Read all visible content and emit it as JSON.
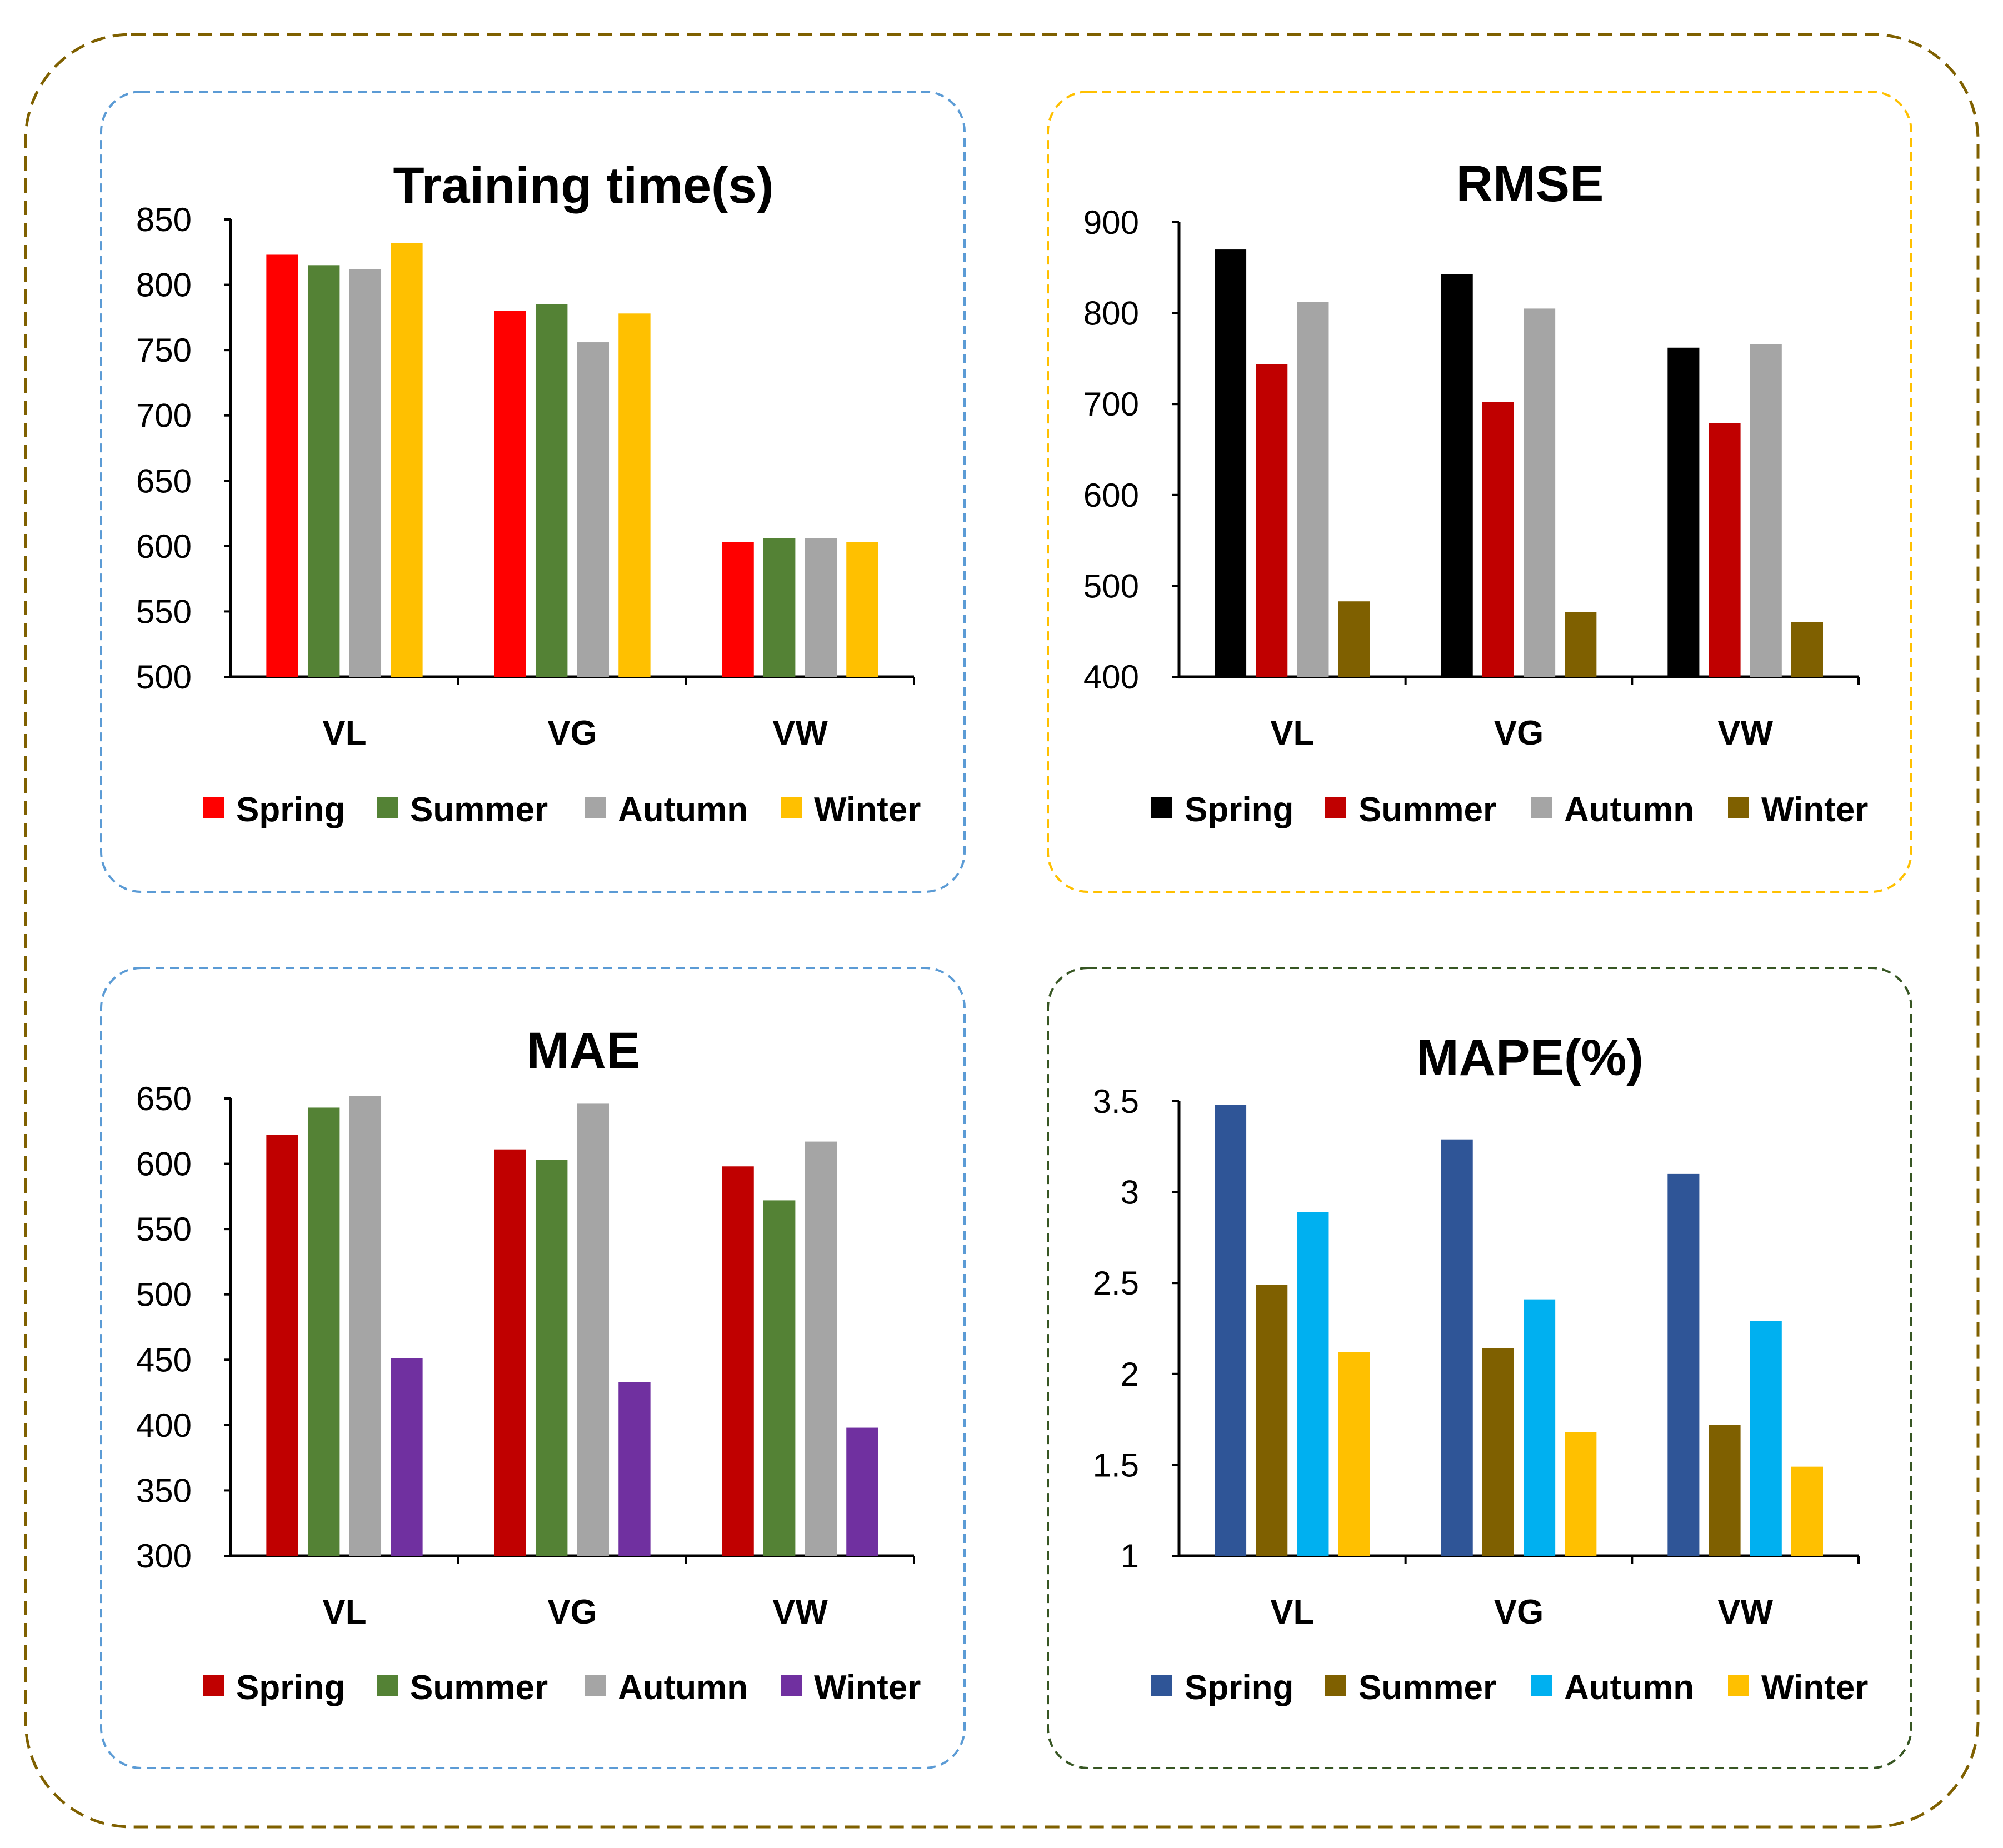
{
  "colors": {
    "outer_frame": "#7F6000",
    "panel_blue": "#5B9BD5",
    "panel_yellow": "#FFC000",
    "panel_green": "#375623"
  },
  "chart_data": [
    {
      "type": "bar",
      "title": "Training time(s)",
      "categories": [
        "VL",
        "VG",
        "VW"
      ],
      "ylim": [
        500,
        850
      ],
      "yticks": [
        "500",
        "550",
        "600",
        "650",
        "700",
        "750",
        "800",
        "850"
      ],
      "legend_position": "bottom",
      "series": [
        {
          "name": "Spring",
          "color": "#FF0000",
          "values": [
            823,
            780,
            603
          ]
        },
        {
          "name": "Summer",
          "color": "#548235",
          "values": [
            815,
            785,
            606
          ]
        },
        {
          "name": "Autumn",
          "color": "#A5A5A5",
          "values": [
            812,
            756,
            606
          ]
        },
        {
          "name": "Winter",
          "color": "#FFC000",
          "values": [
            832,
            778,
            603
          ]
        }
      ]
    },
    {
      "type": "bar",
      "title": "RMSE",
      "categories": [
        "VL",
        "VG",
        "VW"
      ],
      "ylim": [
        400,
        900
      ],
      "yticks": [
        "400",
        "500",
        "600",
        "700",
        "800",
        "900"
      ],
      "legend_position": "bottom",
      "series": [
        {
          "name": "Spring",
          "color": "#000000",
          "values": [
            870,
            843,
            762
          ]
        },
        {
          "name": "Summer",
          "color": "#C00000",
          "values": [
            744,
            702,
            679
          ]
        },
        {
          "name": "Autumn",
          "color": "#A5A5A5",
          "values": [
            812,
            805,
            766
          ]
        },
        {
          "name": "Winter",
          "color": "#7F6000",
          "values": [
            483,
            471,
            460
          ]
        }
      ]
    },
    {
      "type": "bar",
      "title": "MAE",
      "categories": [
        "VL",
        "VG",
        "VW"
      ],
      "ylim": [
        300,
        650
      ],
      "yticks": [
        "300",
        "350",
        "400",
        "450",
        "500",
        "550",
        "600",
        "650"
      ],
      "legend_position": "bottom",
      "series": [
        {
          "name": "Spring",
          "color": "#C00000",
          "values": [
            622,
            611,
            598
          ]
        },
        {
          "name": "Summer",
          "color": "#548235",
          "values": [
            643,
            603,
            572
          ]
        },
        {
          "name": "Autumn",
          "color": "#A5A5A5",
          "values": [
            652,
            646,
            617
          ]
        },
        {
          "name": "Winter",
          "color": "#7030A0",
          "values": [
            451,
            433,
            398
          ]
        }
      ]
    },
    {
      "type": "bar",
      "title": "MAPE(%)",
      "categories": [
        "VL",
        "VG",
        "VW"
      ],
      "ylim": [
        1,
        3.5
      ],
      "yticks": [
        "1",
        "1.5",
        "2",
        "2.5",
        "3",
        "3.5"
      ],
      "legend_position": "bottom",
      "series": [
        {
          "name": "Spring",
          "color": "#2F5597",
          "values": [
            3.48,
            3.29,
            3.1
          ]
        },
        {
          "name": "Summer",
          "color": "#7F6000",
          "values": [
            2.49,
            2.14,
            1.72
          ]
        },
        {
          "name": "Autumn",
          "color": "#00B0F0",
          "values": [
            2.89,
            2.41,
            2.29
          ]
        },
        {
          "name": "Winter",
          "color": "#FFC000",
          "values": [
            2.12,
            1.68,
            1.49
          ]
        }
      ]
    }
  ]
}
